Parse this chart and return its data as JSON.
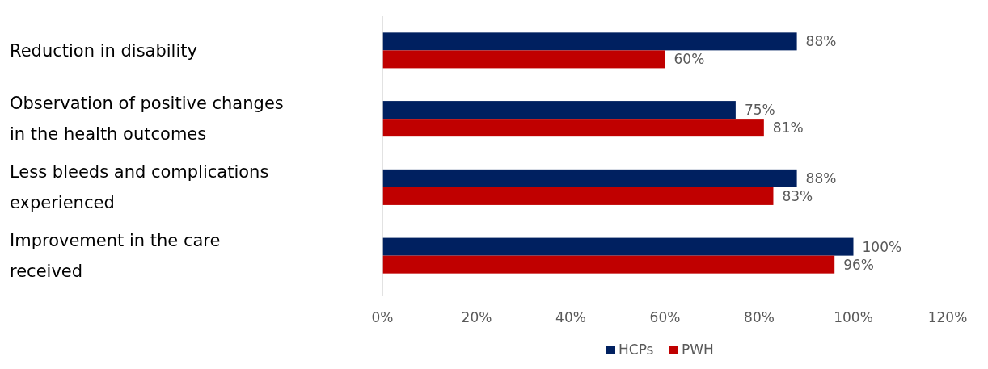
{
  "chart_data": {
    "type": "bar",
    "orientation": "horizontal",
    "categories": [
      "Reduction in disability",
      "Observation of positive changes in the health outcomes",
      "Less bleeds and complications experienced",
      "Improvement in the care received"
    ],
    "series": [
      {
        "name": "HCPs",
        "color": "#002060",
        "values": [
          88,
          75,
          88,
          100
        ],
        "value_labels": [
          "88%",
          "75%",
          "88%",
          "100%"
        ]
      },
      {
        "name": "PWH",
        "color": "#c00000",
        "values": [
          60,
          81,
          83,
          96
        ],
        "value_labels": [
          "60%",
          "81%",
          "83%",
          "96%"
        ]
      }
    ],
    "xlim": [
      0,
      120
    ],
    "xticks": [
      {
        "value": 0,
        "label": "0%"
      },
      {
        "value": 20,
        "label": "20%"
      },
      {
        "value": 40,
        "label": "40%"
      },
      {
        "value": 60,
        "label": "60%"
      },
      {
        "value": 80,
        "label": "80%"
      },
      {
        "value": 100,
        "label": "100%"
      },
      {
        "value": 120,
        "label": "120%"
      }
    ],
    "grid": false,
    "legend": "bottom"
  }
}
